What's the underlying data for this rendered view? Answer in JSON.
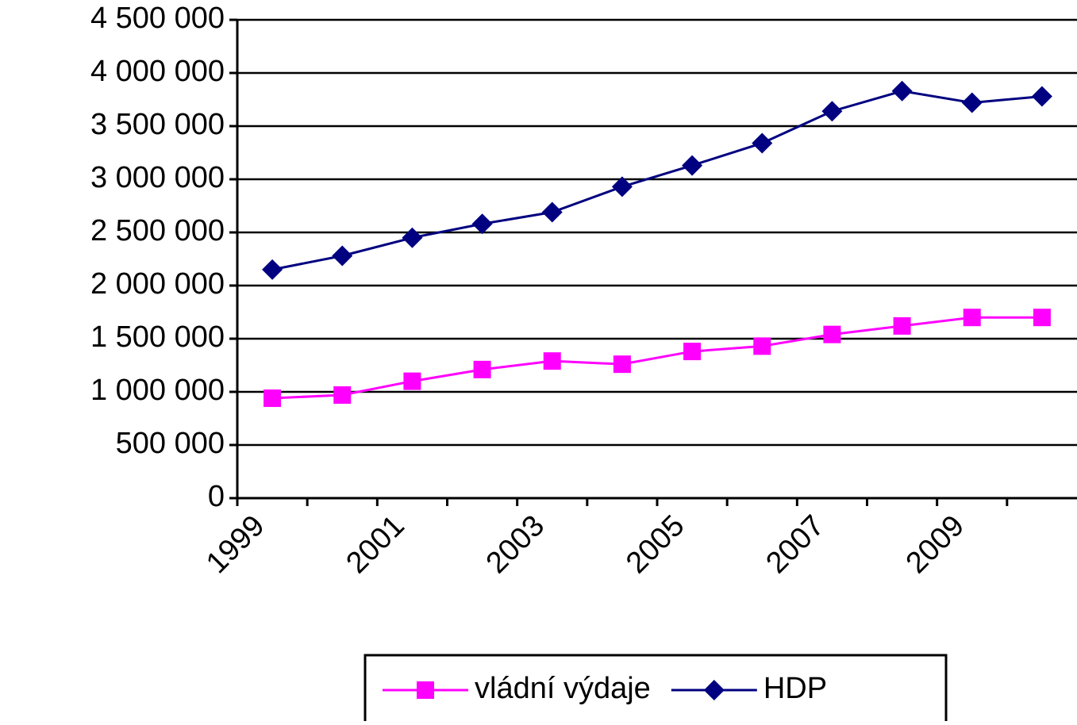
{
  "chart_data": {
    "type": "line",
    "categories": [
      "1999",
      null,
      "2001",
      null,
      "2003",
      null,
      "2005",
      null,
      "2007",
      null,
      "2009",
      null
    ],
    "series": [
      {
        "name": "vládní výdaje",
        "color": "#ff00ff",
        "marker": "square",
        "values": [
          940000,
          970000,
          1100000,
          1210000,
          1290000,
          1260000,
          1380000,
          1430000,
          1540000,
          1620000,
          1700000,
          1700000
        ]
      },
      {
        "name": "HDP",
        "color": "#000080",
        "marker": "diamond",
        "values": [
          2150000,
          2280000,
          2450000,
          2580000,
          2690000,
          2930000,
          3130000,
          3340000,
          3640000,
          3830000,
          3720000,
          3780000
        ]
      }
    ],
    "ylim": [
      0,
      4500000
    ],
    "yticks": [
      0,
      {
        "value": 500000,
        "label": "500 000"
      },
      {
        "value": 1000000,
        "label": "1 000 000"
      },
      {
        "value": 1500000,
        "label": "1 500 000"
      },
      {
        "value": 2000000,
        "label": "2 000 000"
      },
      {
        "value": 2500000,
        "label": "2 500 000"
      },
      {
        "value": 3000000,
        "label": "3 000 000"
      },
      {
        "value": 3500000,
        "label": "3 500 000"
      },
      {
        "value": 4000000,
        "label": "4 000 000"
      },
      {
        "value": 4500000,
        "label": "4 500 000"
      }
    ],
    "grid": true,
    "legend": "bottom"
  }
}
